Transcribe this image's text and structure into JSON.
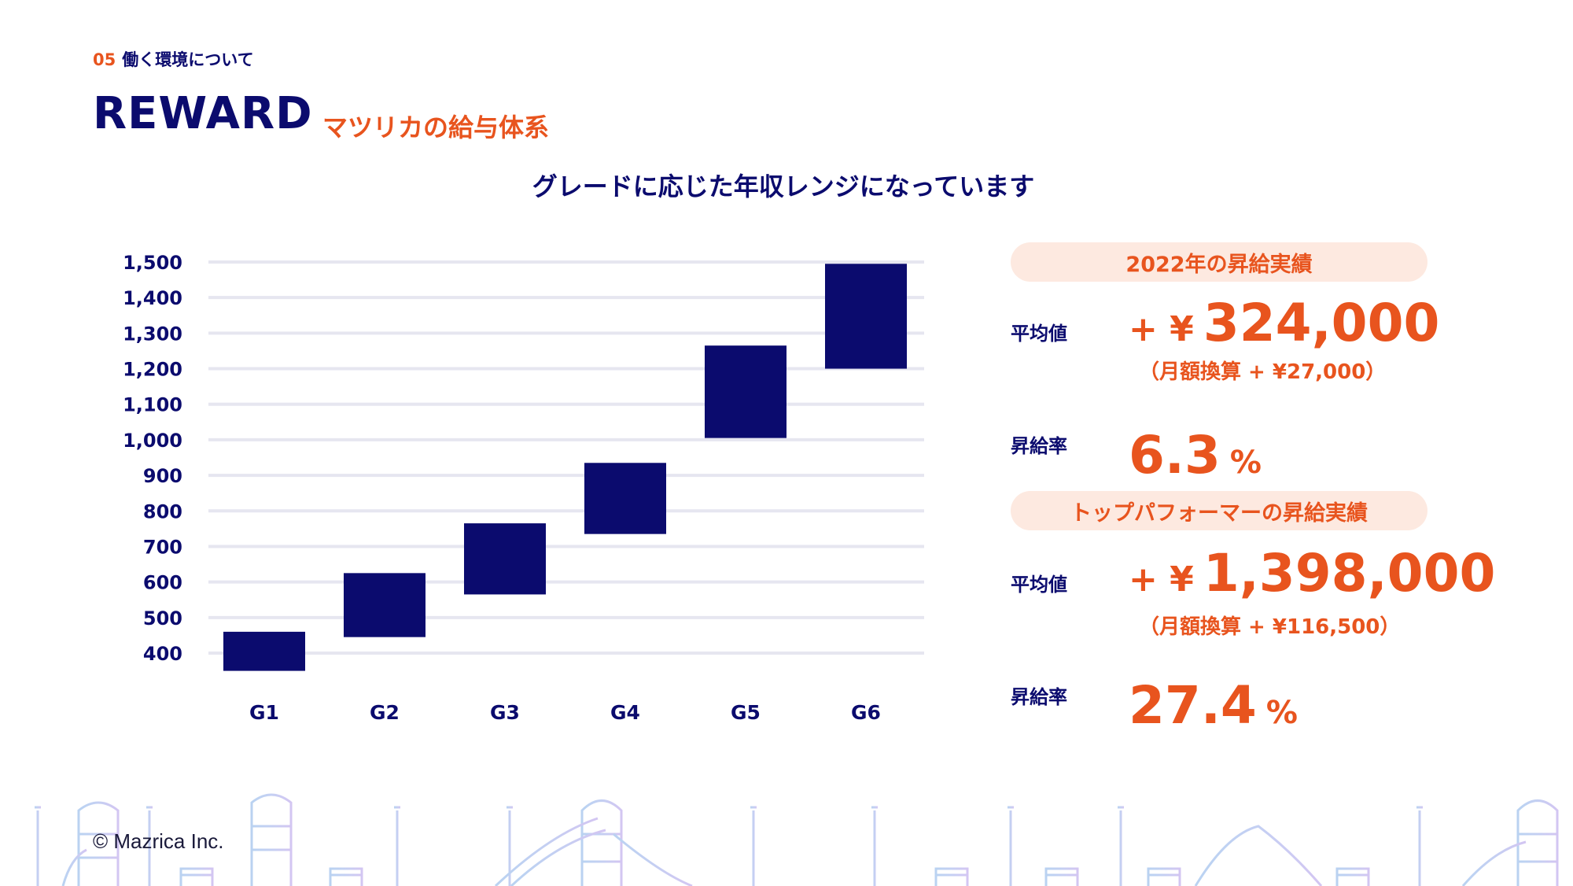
{
  "header": {
    "section_number": "05",
    "section_name": "働く環境について",
    "title": "REWARD",
    "subtitle": "マツリカの給与体系",
    "headline": "グレードに応じた年収レンジになっています"
  },
  "colors": {
    "navy": "#0b0b6e",
    "orange": "#e8541e",
    "pill_bg": "#fde9e0",
    "grid": "#e6e6f0"
  },
  "chart_data": {
    "type": "bar",
    "subtype": "floating-range",
    "categories": [
      "G1",
      "G2",
      "G3",
      "G4",
      "G5",
      "G6"
    ],
    "ranges": [
      [
        350,
        460
      ],
      [
        445,
        625
      ],
      [
        565,
        765
      ],
      [
        735,
        935
      ],
      [
        1005,
        1265
      ],
      [
        1200,
        1495
      ]
    ],
    "ylim": [
      400,
      1500
    ],
    "yticks": [
      400,
      500,
      600,
      700,
      800,
      900,
      1000,
      1100,
      1200,
      1300,
      1400,
      1500
    ],
    "ytick_labels": [
      "400",
      "500",
      "600",
      "700",
      "800",
      "900",
      "1,000",
      "1,100",
      "1,200",
      "1,300",
      "1,400",
      "1,500"
    ],
    "grid": true,
    "bar_color": "#0b0b6e"
  },
  "stats": [
    {
      "pill": "2022年の昇給実績",
      "avg_label": "平均値",
      "avg_prefix": "+ ¥",
      "avg_value": "324,000",
      "monthly_note": "（月額換算 + ¥27,000）",
      "rate_label": "昇給率",
      "rate_value": "6.3",
      "rate_unit": "%"
    },
    {
      "pill": "トップパフォーマーの昇給実績",
      "avg_label": "平均値",
      "avg_prefix": "+ ¥",
      "avg_value": "1,398,000",
      "monthly_note": "（月額換算 + ¥116,500）",
      "rate_label": "昇給率",
      "rate_value": "27.4",
      "rate_unit": "%"
    }
  ],
  "footer": {
    "copyright": "© Mazrica Inc."
  }
}
